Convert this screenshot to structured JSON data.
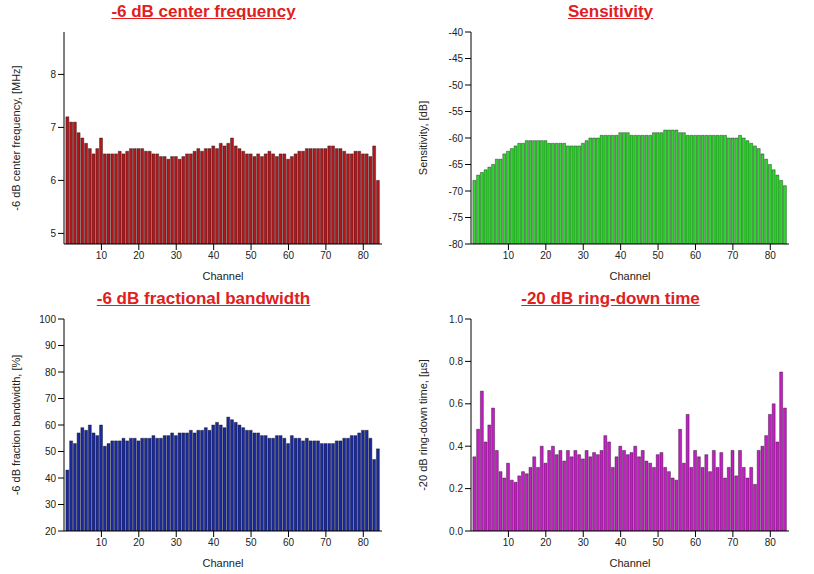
{
  "chart_data": [
    {
      "type": "bar",
      "title": "-6 dB center frequency",
      "x_label": "Channel",
      "y_label": "-6 dB center frequency, [MHz]",
      "x": [
        1,
        2,
        3,
        4,
        5,
        6,
        7,
        8,
        9,
        10,
        11,
        12,
        13,
        14,
        15,
        16,
        17,
        18,
        19,
        20,
        21,
        22,
        23,
        24,
        25,
        26,
        27,
        28,
        29,
        30,
        31,
        32,
        33,
        34,
        35,
        36,
        37,
        38,
        39,
        40,
        41,
        42,
        43,
        44,
        45,
        46,
        47,
        48,
        49,
        50,
        51,
        52,
        53,
        54,
        55,
        56,
        57,
        58,
        59,
        60,
        61,
        62,
        63,
        64,
        65,
        66,
        67,
        68,
        69,
        70,
        71,
        72,
        73,
        74,
        75,
        76,
        77,
        78,
        79,
        80,
        81,
        82,
        83,
        84
      ],
      "values": [
        7.2,
        7.1,
        7.1,
        6.9,
        6.8,
        6.7,
        6.6,
        6.5,
        6.6,
        6.8,
        6.5,
        6.5,
        6.5,
        6.5,
        6.55,
        6.5,
        6.55,
        6.6,
        6.6,
        6.6,
        6.6,
        6.55,
        6.55,
        6.5,
        6.5,
        6.45,
        6.45,
        6.4,
        6.45,
        6.45,
        6.4,
        6.45,
        6.5,
        6.5,
        6.55,
        6.6,
        6.55,
        6.6,
        6.6,
        6.65,
        6.6,
        6.7,
        6.65,
        6.7,
        6.8,
        6.65,
        6.6,
        6.55,
        6.5,
        6.5,
        6.45,
        6.5,
        6.45,
        6.5,
        6.55,
        6.5,
        6.45,
        6.5,
        6.5,
        6.4,
        6.45,
        6.5,
        6.55,
        6.55,
        6.6,
        6.6,
        6.6,
        6.6,
        6.6,
        6.6,
        6.65,
        6.65,
        6.6,
        6.6,
        6.55,
        6.5,
        6.5,
        6.55,
        6.55,
        6.5,
        6.5,
        6.45,
        6.65,
        6.0
      ],
      "color": "#b0181c",
      "xlim": [
        0,
        85
      ],
      "xticks": [
        10,
        20,
        30,
        40,
        50,
        60,
        70,
        80
      ],
      "ylim": [
        4.8,
        8.8
      ],
      "yticks": [
        5,
        6,
        7,
        8
      ]
    },
    {
      "type": "bar",
      "title": "Sensitivity",
      "x_label": "Channel",
      "y_label": "Sensitivity, [dB]",
      "x": [
        1,
        2,
        3,
        4,
        5,
        6,
        7,
        8,
        9,
        10,
        11,
        12,
        13,
        14,
        15,
        16,
        17,
        18,
        19,
        20,
        21,
        22,
        23,
        24,
        25,
        26,
        27,
        28,
        29,
        30,
        31,
        32,
        33,
        34,
        35,
        36,
        37,
        38,
        39,
        40,
        41,
        42,
        43,
        44,
        45,
        46,
        47,
        48,
        49,
        50,
        51,
        52,
        53,
        54,
        55,
        56,
        57,
        58,
        59,
        60,
        61,
        62,
        63,
        64,
        65,
        66,
        67,
        68,
        69,
        70,
        71,
        72,
        73,
        74,
        75,
        76,
        77,
        78,
        79,
        80,
        81,
        82,
        83,
        84
      ],
      "values": [
        -68,
        -67,
        -66.5,
        -66,
        -65.5,
        -65,
        -64,
        -64,
        -63,
        -62.5,
        -62,
        -61.5,
        -61,
        -61,
        -60.5,
        -60.5,
        -60.5,
        -60.5,
        -60.5,
        -60.5,
        -61,
        -61,
        -61,
        -61,
        -61,
        -61.5,
        -61.5,
        -61.5,
        -61.5,
        -61,
        -60.5,
        -60,
        -60,
        -60,
        -59.5,
        -59.5,
        -59.5,
        -59.5,
        -59.5,
        -59,
        -59,
        -59,
        -59.5,
        -59.5,
        -59.5,
        -59.5,
        -59.5,
        -59.5,
        -59,
        -59,
        -59,
        -58.5,
        -58.5,
        -58.5,
        -58.5,
        -59,
        -59,
        -59.5,
        -59.5,
        -59.5,
        -59.5,
        -59.5,
        -59.5,
        -59.5,
        -59.5,
        -59.5,
        -59.5,
        -59.5,
        -60,
        -60,
        -60,
        -59.5,
        -60,
        -60.5,
        -61,
        -61.5,
        -62,
        -63,
        -64,
        -65,
        -66,
        -67,
        -68,
        -69
      ],
      "color": "#2ed62e",
      "xlim": [
        0,
        85
      ],
      "xticks": [
        10,
        20,
        30,
        40,
        50,
        60,
        70,
        80
      ],
      "ylim": [
        -80,
        -40
      ],
      "yticks": [
        -80,
        -75,
        -70,
        -65,
        -60,
        -55,
        -50,
        -45,
        -40
      ]
    },
    {
      "type": "bar",
      "title": "-6 dB fractional bandwidth",
      "x_label": "Channel",
      "y_label": "-6 dB fraction bandwidth, [%]",
      "x": [
        1,
        2,
        3,
        4,
        5,
        6,
        7,
        8,
        9,
        10,
        11,
        12,
        13,
        14,
        15,
        16,
        17,
        18,
        19,
        20,
        21,
        22,
        23,
        24,
        25,
        26,
        27,
        28,
        29,
        30,
        31,
        32,
        33,
        34,
        35,
        36,
        37,
        38,
        39,
        40,
        41,
        42,
        43,
        44,
        45,
        46,
        47,
        48,
        49,
        50,
        51,
        52,
        53,
        54,
        55,
        56,
        57,
        58,
        59,
        60,
        61,
        62,
        63,
        64,
        65,
        66,
        67,
        68,
        69,
        70,
        71,
        72,
        73,
        74,
        75,
        76,
        77,
        78,
        79,
        80,
        81,
        82,
        83,
        84
      ],
      "values": [
        43,
        54,
        53,
        57,
        59,
        58,
        60,
        57,
        56,
        60,
        52,
        53,
        54,
        54,
        54,
        55,
        54,
        55,
        55,
        54,
        55,
        55,
        55,
        56,
        55,
        55,
        56,
        56,
        57,
        56,
        57,
        57,
        57,
        58,
        57,
        58,
        58,
        59,
        58,
        60,
        61,
        60,
        59,
        63,
        62,
        61,
        60,
        59,
        58,
        58,
        57,
        57,
        56,
        56,
        55,
        55,
        56,
        56,
        55,
        53,
        56,
        55,
        55,
        54,
        55,
        54,
        54,
        54,
        53,
        53,
        53,
        53,
        54,
        54,
        55,
        55,
        56,
        56,
        57,
        58,
        58,
        55,
        47,
        51
      ],
      "color": "#1a2a9c",
      "xlim": [
        0,
        85
      ],
      "xticks": [
        10,
        20,
        30,
        40,
        50,
        60,
        70,
        80
      ],
      "ylim": [
        20,
        100
      ],
      "yticks": [
        20,
        30,
        40,
        50,
        60,
        70,
        80,
        90,
        100
      ]
    },
    {
      "type": "bar",
      "title": "-20 dB ring-down time",
      "x_label": "Channel",
      "y_label": "-20 dB ring-down time, [µs]",
      "x": [
        1,
        2,
        3,
        4,
        5,
        6,
        7,
        8,
        9,
        10,
        11,
        12,
        13,
        14,
        15,
        16,
        17,
        18,
        19,
        20,
        21,
        22,
        23,
        24,
        25,
        26,
        27,
        28,
        29,
        30,
        31,
        32,
        33,
        34,
        35,
        36,
        37,
        38,
        39,
        40,
        41,
        42,
        43,
        44,
        45,
        46,
        47,
        48,
        49,
        50,
        51,
        52,
        53,
        54,
        55,
        56,
        57,
        58,
        59,
        60,
        61,
        62,
        63,
        64,
        65,
        66,
        67,
        68,
        69,
        70,
        71,
        72,
        73,
        74,
        75,
        76,
        77,
        78,
        79,
        80,
        81,
        82,
        83,
        84
      ],
      "values": [
        0.35,
        0.48,
        0.66,
        0.42,
        0.5,
        0.58,
        0.38,
        0.28,
        0.25,
        0.32,
        0.24,
        0.23,
        0.26,
        0.28,
        0.27,
        0.3,
        0.35,
        0.3,
        0.4,
        0.32,
        0.38,
        0.4,
        0.36,
        0.38,
        0.33,
        0.38,
        0.35,
        0.38,
        0.36,
        0.34,
        0.38,
        0.35,
        0.37,
        0.36,
        0.38,
        0.45,
        0.42,
        0.3,
        0.35,
        0.4,
        0.38,
        0.36,
        0.37,
        0.4,
        0.35,
        0.38,
        0.33,
        0.32,
        0.3,
        0.36,
        0.37,
        0.3,
        0.28,
        0.25,
        0.24,
        0.48,
        0.32,
        0.55,
        0.3,
        0.38,
        0.35,
        0.3,
        0.36,
        0.28,
        0.38,
        0.3,
        0.37,
        0.25,
        0.3,
        0.38,
        0.26,
        0.38,
        0.3,
        0.25,
        0.3,
        0.22,
        0.38,
        0.4,
        0.45,
        0.55,
        0.6,
        0.42,
        0.75,
        0.58
      ],
      "color": "#c41ec4",
      "xlim": [
        0,
        85
      ],
      "xticks": [
        10,
        20,
        30,
        40,
        50,
        60,
        70,
        80
      ],
      "ylim": [
        0,
        1
      ],
      "yticks": [
        {
          "value": 0,
          "label": "0.0"
        },
        0.2,
        0.4,
        0.6,
        0.8,
        {
          "value": 1,
          "label": "1.0"
        }
      ]
    }
  ]
}
